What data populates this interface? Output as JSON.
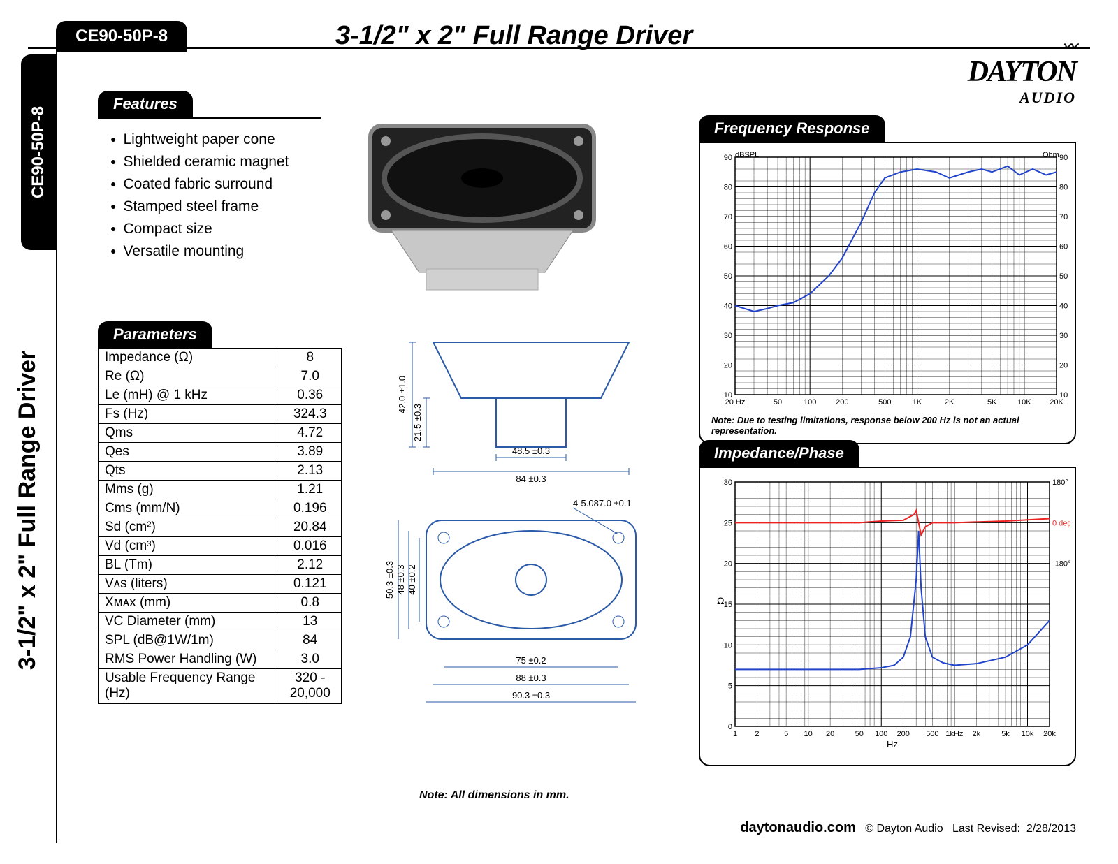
{
  "header": {
    "model": "CE90-50P-8",
    "title": "3-1/2\" x 2\" Full Range Driver",
    "brand_line1": "DAYTON",
    "brand_line2": "AUDIO"
  },
  "features": {
    "heading": "Features",
    "items": [
      "Lightweight paper cone",
      "Shielded ceramic magnet",
      "Coated fabric surround",
      "Stamped steel frame",
      "Compact size",
      "Versatile mounting"
    ]
  },
  "parameters": {
    "heading": "Parameters",
    "rows": [
      {
        "label": "Impedance (Ω)",
        "value": "8"
      },
      {
        "label": "Re (Ω)",
        "value": "7.0"
      },
      {
        "label": "Le (mH)  @ 1 kHz",
        "value": "0.36"
      },
      {
        "label": "Fs (Hz)",
        "value": "324.3"
      },
      {
        "label": "Qms",
        "value": "4.72"
      },
      {
        "label": "Qes",
        "value": "3.89"
      },
      {
        "label": "Qts",
        "value": "2.13"
      },
      {
        "label": "Mms (g)",
        "value": "1.21"
      },
      {
        "label": "Cms (mm/N)",
        "value": "0.196"
      },
      {
        "label": "Sd (cm²)",
        "value": "20.84"
      },
      {
        "label": "Vd (cm³)",
        "value": "0.016"
      },
      {
        "label": "BL (Tm)",
        "value": "2.12"
      },
      {
        "label": "Vᴀs (liters)",
        "value": "0.121"
      },
      {
        "label": "Xᴍᴀx (mm)",
        "value": "0.8"
      },
      {
        "label": "VC Diameter (mm)",
        "value": "13"
      },
      {
        "label": "SPL (dB@1W/1m)",
        "value": "84"
      },
      {
        "label": "RMS Power Handling (W)",
        "value": "3.0"
      },
      {
        "label": "Usable Frequency Range (Hz)",
        "value": "320 - 20,000"
      }
    ]
  },
  "drawings": {
    "note": "Note:  All dimensions in mm.",
    "side": {
      "h_total": "42.0 ±1.0",
      "h_mag": "21.5 ±0.3",
      "w_mag": "48.5 ±0.3",
      "w_flange": "84 ±0.3"
    },
    "top": {
      "hole": "4-5.087.0 ±0.1",
      "h_out": "50.3 ±0.3",
      "h_mid": "48 ±0.3",
      "h_in": "40 ±0.2",
      "w_in": "75 ±0.2",
      "w_mid": "88 ±0.3",
      "w_out": "90.3 ±0.3"
    }
  },
  "freq_response": {
    "heading": "Frequency Response",
    "note": "Note:  Due to testing limitations, response below 200 Hz is not an actual representation.",
    "y_label_left": "dBSPL",
    "y_label_right": "Ohm",
    "y_min": 10,
    "y_max": 90,
    "y_step": 10,
    "x_ticks": [
      "20 Hz",
      "50",
      "100",
      "200",
      "500",
      "1K",
      "2K",
      "5K",
      "10K",
      "20K"
    ],
    "curve_color": "#2244cc",
    "points": [
      [
        20,
        40
      ],
      [
        30,
        38
      ],
      [
        40,
        39
      ],
      [
        50,
        40
      ],
      [
        70,
        41
      ],
      [
        100,
        44
      ],
      [
        150,
        50
      ],
      [
        200,
        56
      ],
      [
        300,
        68
      ],
      [
        400,
        78
      ],
      [
        500,
        83
      ],
      [
        700,
        85
      ],
      [
        1000,
        86
      ],
      [
        1500,
        85
      ],
      [
        2000,
        83
      ],
      [
        3000,
        85
      ],
      [
        4000,
        86
      ],
      [
        5000,
        85
      ],
      [
        7000,
        87
      ],
      [
        9000,
        84
      ],
      [
        12000,
        86
      ],
      [
        16000,
        84
      ],
      [
        20000,
        85
      ]
    ]
  },
  "impedance": {
    "heading": "Impedance/Phase",
    "y_left_label": "Ω",
    "y_left_min": 0,
    "y_left_max": 30,
    "y_left_step": 5,
    "y_right_ticks": [
      "180°",
      "0 deg",
      "-180°"
    ],
    "x_label": "Hz",
    "x_ticks": [
      "1",
      "2",
      "5",
      "10",
      "20",
      "50",
      "100",
      "200",
      "500",
      "1kHz",
      "2k",
      "5k",
      "10k",
      "20k"
    ],
    "imp_color": "#2244cc",
    "imp_points": [
      [
        1,
        7
      ],
      [
        10,
        7
      ],
      [
        50,
        7
      ],
      [
        100,
        7.2
      ],
      [
        150,
        7.5
      ],
      [
        200,
        8.5
      ],
      [
        250,
        11
      ],
      [
        300,
        18
      ],
      [
        324,
        24
      ],
      [
        350,
        17
      ],
      [
        400,
        11
      ],
      [
        500,
        8.5
      ],
      [
        700,
        7.8
      ],
      [
        1000,
        7.5
      ],
      [
        2000,
        7.7
      ],
      [
        5000,
        8.5
      ],
      [
        10000,
        10
      ],
      [
        20000,
        13
      ]
    ],
    "phase_color": "#ee2222",
    "phase_points": [
      [
        1,
        25
      ],
      [
        50,
        25
      ],
      [
        100,
        25.2
      ],
      [
        200,
        25.3
      ],
      [
        280,
        26
      ],
      [
        300,
        26.5
      ],
      [
        324,
        25
      ],
      [
        350,
        23.5
      ],
      [
        400,
        24.5
      ],
      [
        500,
        25
      ],
      [
        1000,
        25
      ],
      [
        5000,
        25.2
      ],
      [
        20000,
        25.5
      ]
    ]
  },
  "footer": {
    "site": "daytonaudio.com",
    "copyright": "© Dayton Audio",
    "revised_label": "Last Revised:",
    "revised_date": "2/28/2013"
  }
}
